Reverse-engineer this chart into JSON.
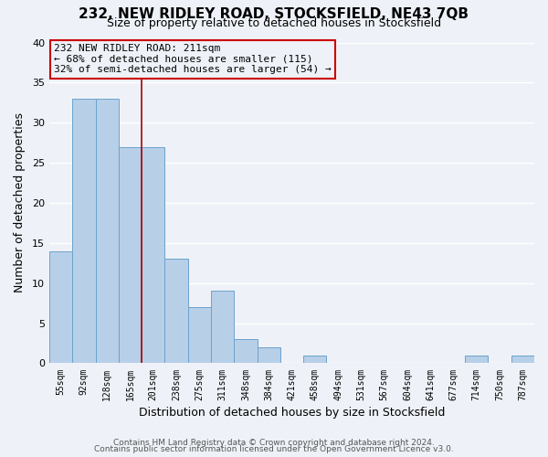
{
  "title": "232, NEW RIDLEY ROAD, STOCKSFIELD, NE43 7QB",
  "subtitle": "Size of property relative to detached houses in Stocksfield",
  "xlabel": "Distribution of detached houses by size in Stocksfield",
  "ylabel": "Number of detached properties",
  "bin_labels": [
    "55sqm",
    "92sqm",
    "128sqm",
    "165sqm",
    "201sqm",
    "238sqm",
    "275sqm",
    "311sqm",
    "348sqm",
    "384sqm",
    "421sqm",
    "458sqm",
    "494sqm",
    "531sqm",
    "567sqm",
    "604sqm",
    "641sqm",
    "677sqm",
    "714sqm",
    "750sqm",
    "787sqm"
  ],
  "bar_values": [
    14,
    33,
    33,
    27,
    27,
    13,
    7,
    9,
    3,
    2,
    0,
    1,
    0,
    0,
    0,
    0,
    0,
    0,
    1,
    0,
    1
  ],
  "bar_color": "#b8cfe8",
  "bar_edgecolor": "#6ba3cc",
  "vline_x": 3.5,
  "vline_color": "#aa0000",
  "ylim": [
    0,
    40
  ],
  "yticks": [
    0,
    5,
    10,
    15,
    20,
    25,
    30,
    35,
    40
  ],
  "annotation_title": "232 NEW RIDLEY ROAD: 211sqm",
  "annotation_line1": "← 68% of detached houses are smaller (115)",
  "annotation_line2": "32% of semi-detached houses are larger (54) →",
  "annotation_box_edgecolor": "#cc0000",
  "footer1": "Contains HM Land Registry data © Crown copyright and database right 2024.",
  "footer2": "Contains public sector information licensed under the Open Government Licence v3.0.",
  "background_color": "#eef2f8",
  "grid_color": "#d8dde8",
  "title_fontsize": 11,
  "subtitle_fontsize": 9
}
